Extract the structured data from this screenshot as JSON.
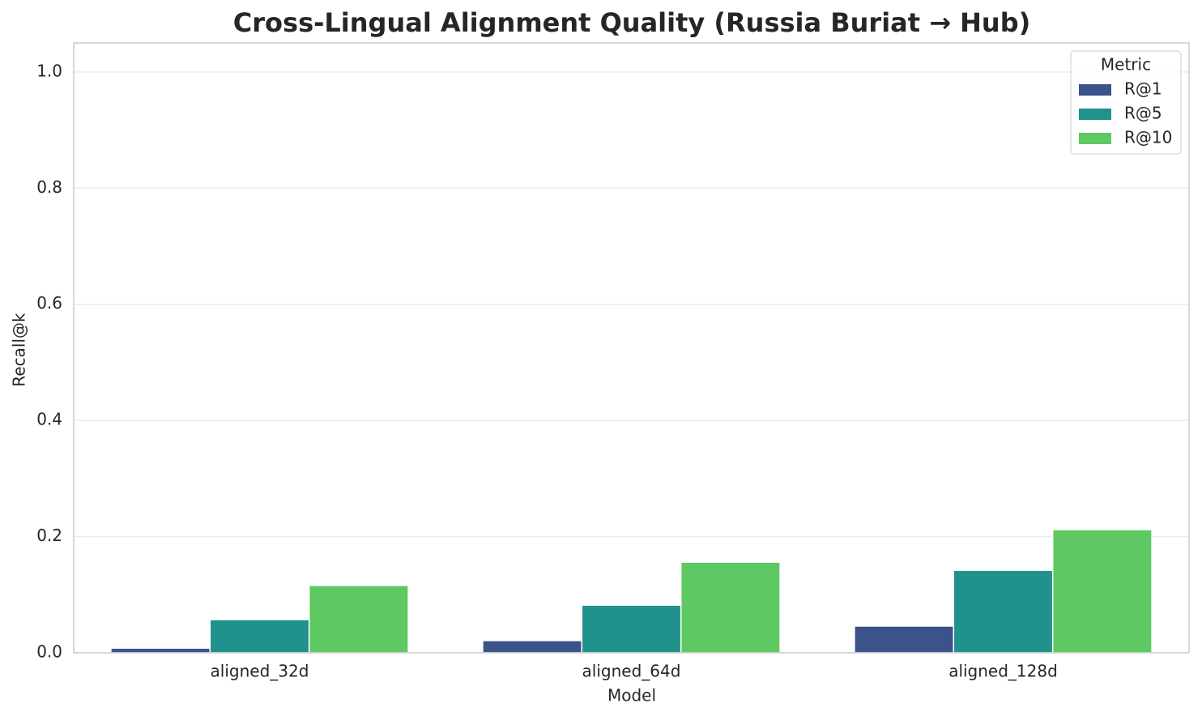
{
  "chart_data": {
    "type": "bar",
    "title": "Cross-Lingual Alignment Quality (Russia Buriat → Hub)",
    "x_label": "Model",
    "y_label": "Recall@k",
    "categories": [
      "aligned_32d",
      "aligned_64d",
      "aligned_128d"
    ],
    "series": [
      {
        "name": "R@1",
        "color": "#3b528b",
        "values": [
          0.008,
          0.021,
          0.046
        ]
      },
      {
        "name": "R@5",
        "color": "#21918c",
        "values": [
          0.057,
          0.082,
          0.142
        ]
      },
      {
        "name": "R@10",
        "color": "#5ec962",
        "values": [
          0.116,
          0.156,
          0.212
        ]
      }
    ],
    "ylim": [
      0,
      1.05
    ],
    "yticks": [
      {
        "value": 0,
        "label": "0.0"
      },
      0.2,
      0.4,
      0.6,
      0.8,
      {
        "value": 1,
        "label": "1.0"
      }
    ],
    "grid": true,
    "legend_title": "Metric",
    "legend_position": "upper-right"
  }
}
